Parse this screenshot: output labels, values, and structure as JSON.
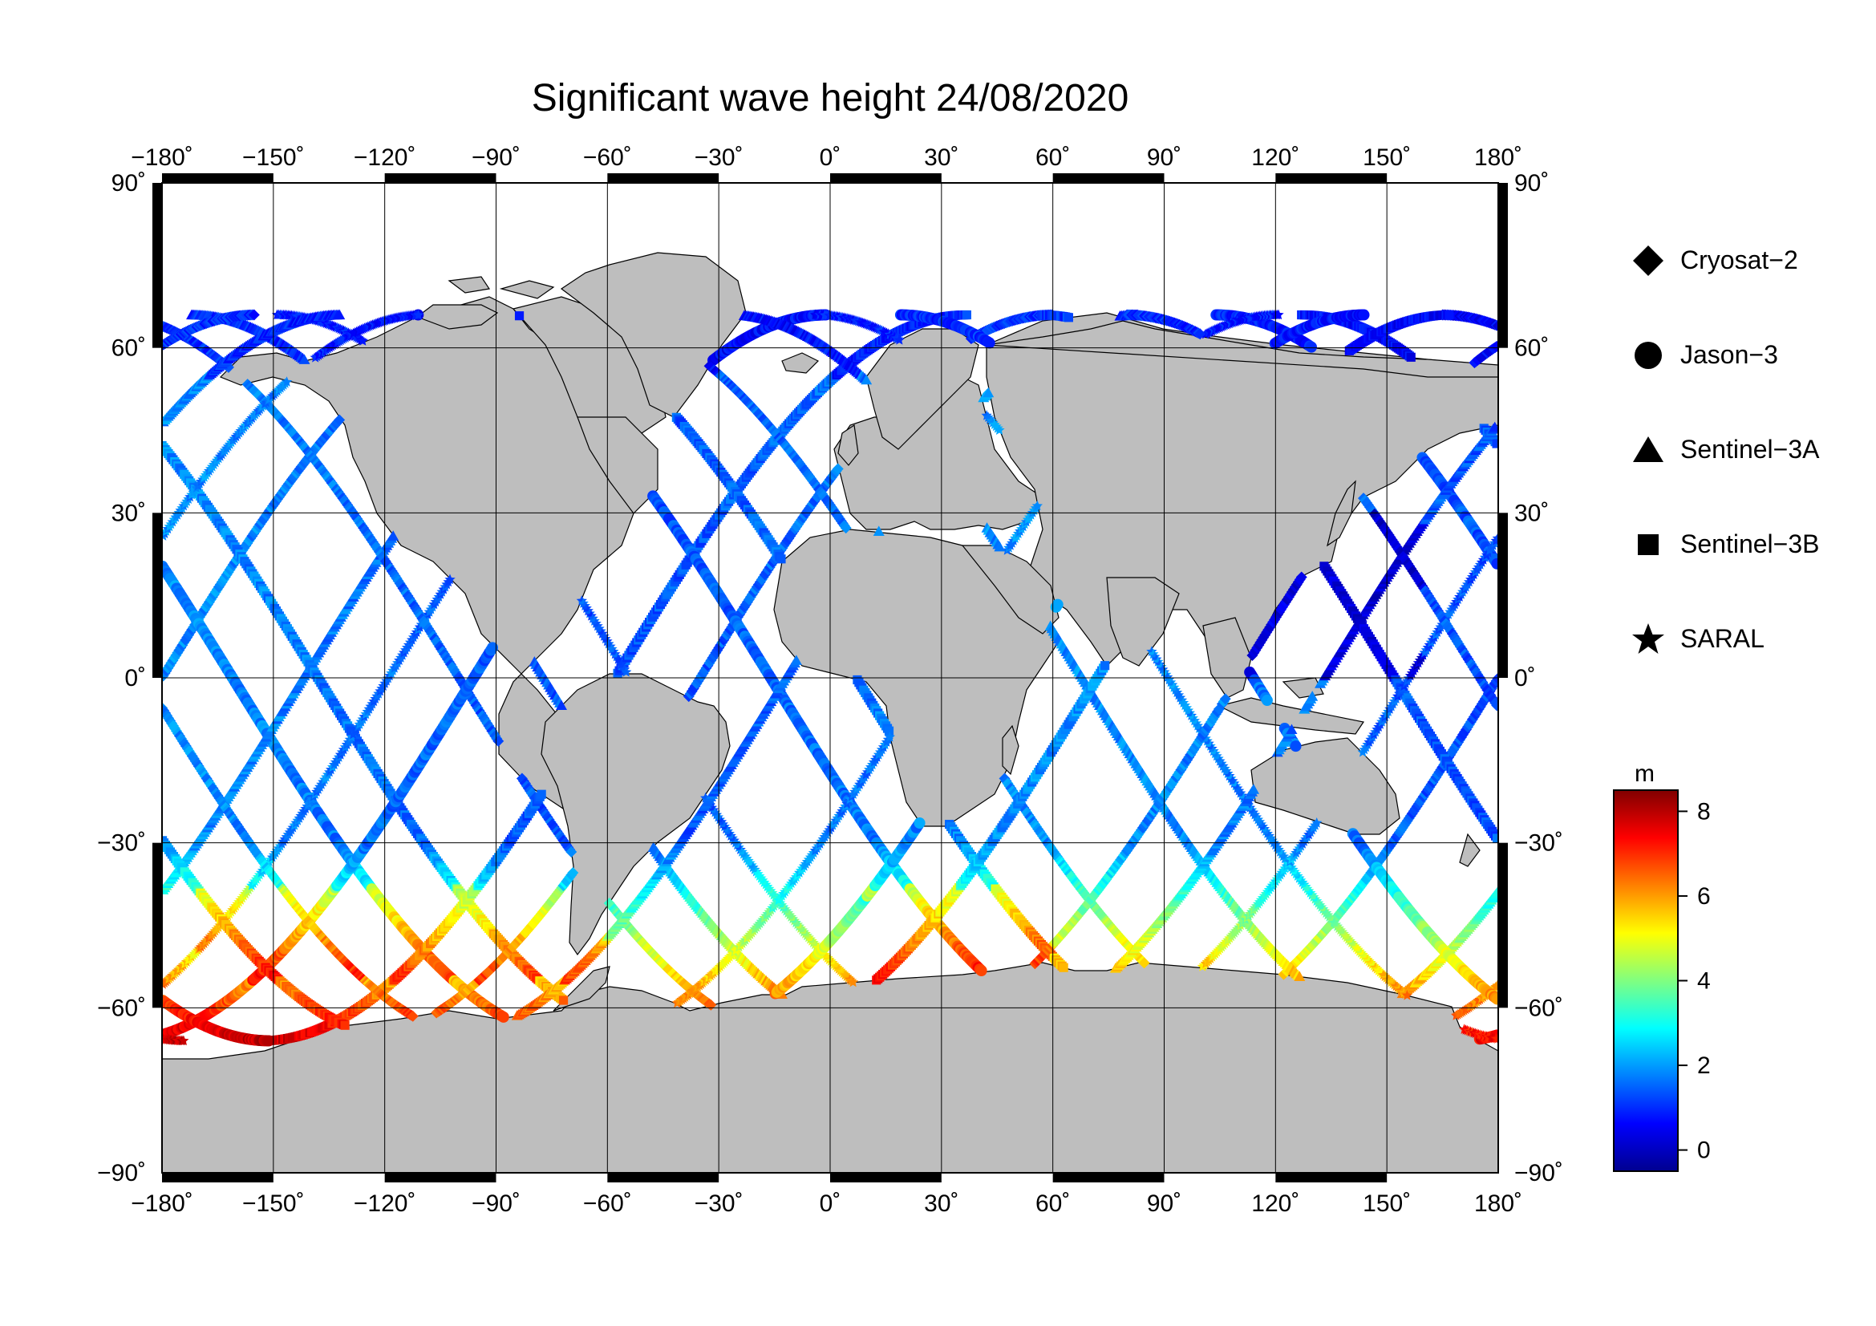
{
  "title": "Significant wave height 24/08/2020",
  "map": {
    "lon_ticks": [
      {
        "value": -180,
        "label": "−180˚"
      },
      {
        "value": -150,
        "label": "−150˚"
      },
      {
        "value": -120,
        "label": "−120˚"
      },
      {
        "value": -90,
        "label": "−90˚"
      },
      {
        "value": -60,
        "label": "−60˚"
      },
      {
        "value": -30,
        "label": "−30˚"
      },
      {
        "value": 0,
        "label": "0˚"
      },
      {
        "value": 30,
        "label": "30˚"
      },
      {
        "value": 60,
        "label": "60˚"
      },
      {
        "value": 90,
        "label": "90˚"
      },
      {
        "value": 120,
        "label": "120˚"
      },
      {
        "value": 150,
        "label": "150˚"
      },
      {
        "value": 180,
        "label": "180˚"
      }
    ],
    "lat_ticks": [
      {
        "value": 90,
        "label": "90˚"
      },
      {
        "value": 60,
        "label": "60˚"
      },
      {
        "value": 30,
        "label": "30˚"
      },
      {
        "value": 0,
        "label": "0˚"
      },
      {
        "value": -30,
        "label": "−30˚"
      },
      {
        "value": -60,
        "label": "−60˚"
      },
      {
        "value": -90,
        "label": "−90˚"
      }
    ],
    "land_color": "#bebebe",
    "ocean_color": "#ffffff"
  },
  "legend": [
    {
      "label": "Cryosat−2",
      "symbol": "diamond"
    },
    {
      "label": "Jason−3",
      "symbol": "circle"
    },
    {
      "label": "Sentinel−3A",
      "symbol": "triangle"
    },
    {
      "label": "Sentinel−3B",
      "symbol": "square"
    },
    {
      "label": "SARAL",
      "symbol": "star"
    }
  ],
  "colorbar": {
    "unit": "m",
    "min": -0.5,
    "max": 8.5,
    "ticks": [
      {
        "value": 8,
        "label": "8"
      },
      {
        "value": 6,
        "label": "6"
      },
      {
        "value": 4,
        "label": "4"
      },
      {
        "value": 2,
        "label": "2"
      },
      {
        "value": 0,
        "label": "0"
      }
    ],
    "colormap": [
      "#00008f",
      "#0000ff",
      "#0080ff",
      "#00ffff",
      "#80ff80",
      "#ffff00",
      "#ff8000",
      "#ff0000",
      "#800000"
    ]
  }
}
